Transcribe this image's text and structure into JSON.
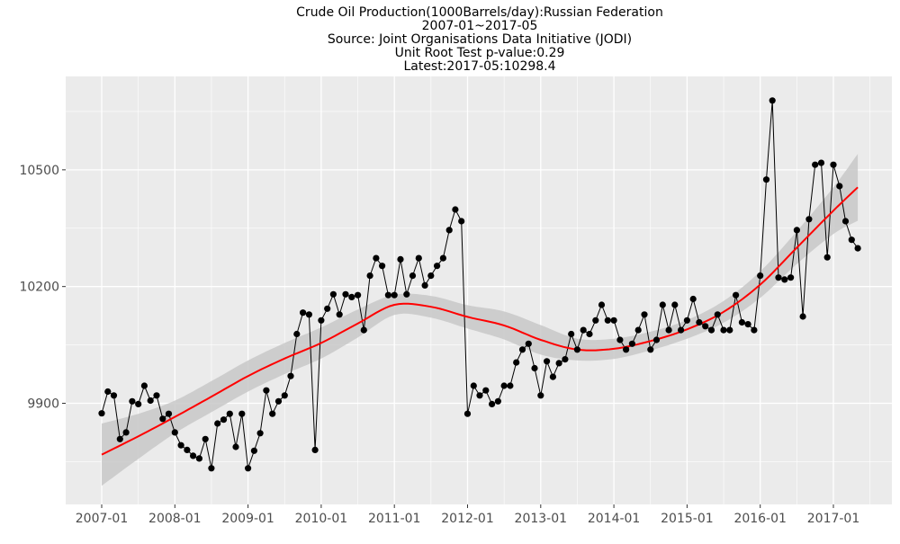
{
  "chart_data": {
    "type": "line",
    "title_lines": [
      "Crude Oil Production(1000Barrels/day):Russian Federation",
      "2007-01~2017-05",
      "Source: Joint Organisations Data Initiative (JODI)",
      "Unit Root Test p-value:0.29",
      "Latest:2017-05:10298.4"
    ],
    "xlabel": "",
    "ylabel": "",
    "x_ticks": [
      "2007-01",
      "2008-01",
      "2009-01",
      "2010-01",
      "2011-01",
      "2012-01",
      "2013-01",
      "2014-01",
      "2015-01",
      "2016-01",
      "2017-01"
    ],
    "y_ticks": [
      9900,
      10200,
      10500
    ],
    "ylim": [
      9640,
      10740
    ],
    "grid": true,
    "colors": {
      "panel": "#ebebeb",
      "grid": "#ffffff",
      "line": "#000000",
      "point": "#000000",
      "smooth": "#ff0000",
      "band": "#c8c8c8"
    },
    "series": [
      {
        "x": [
          "2007-01",
          "2007-02",
          "2007-03",
          "2007-04",
          "2007-05",
          "2007-06",
          "2007-07",
          "2007-08",
          "2007-09",
          "2007-10",
          "2007-11",
          "2007-12",
          "2008-01",
          "2008-02",
          "2008-03",
          "2008-04",
          "2008-05",
          "2008-06",
          "2008-07",
          "2008-08",
          "2008-09",
          "2008-10",
          "2008-11",
          "2008-12",
          "2009-01",
          "2009-02",
          "2009-03",
          "2009-04",
          "2009-05",
          "2009-06",
          "2009-07",
          "2009-08",
          "2009-09",
          "2009-10",
          "2009-11",
          "2009-12",
          "2010-01",
          "2010-02",
          "2010-03",
          "2010-04",
          "2010-05",
          "2010-06",
          "2010-07",
          "2010-08",
          "2010-09",
          "2010-10",
          "2010-11",
          "2010-12",
          "2011-01",
          "2011-02",
          "2011-03",
          "2011-04",
          "2011-05",
          "2011-06",
          "2011-07",
          "2011-08",
          "2011-09",
          "2011-10",
          "2011-11",
          "2011-12",
          "2012-01",
          "2012-02",
          "2012-03",
          "2012-04",
          "2012-05",
          "2012-06",
          "2012-07",
          "2012-08",
          "2012-09",
          "2012-10",
          "2012-11",
          "2012-12",
          "2013-01",
          "2013-02",
          "2013-03",
          "2013-04",
          "2013-05",
          "2013-06",
          "2013-07",
          "2013-08",
          "2013-09",
          "2013-10",
          "2013-11",
          "2013-12",
          "2014-01",
          "2014-02",
          "2014-03",
          "2014-04",
          "2014-05",
          "2014-06",
          "2014-07",
          "2014-08",
          "2014-09",
          "2014-10",
          "2014-11",
          "2014-12",
          "2015-01",
          "2015-02",
          "2015-03",
          "2015-04",
          "2015-05",
          "2015-06",
          "2015-07",
          "2015-08",
          "2015-09",
          "2015-10",
          "2015-11",
          "2015-12",
          "2016-01",
          "2016-02",
          "2016-03",
          "2016-04",
          "2016-05",
          "2016-06",
          "2016-07",
          "2016-08",
          "2016-09",
          "2016-10",
          "2016-11",
          "2016-12",
          "2017-01",
          "2017-02",
          "2017-03",
          "2017-04",
          "2017-05"
        ],
        "y": [
          9874,
          9930,
          9920,
          9808,
          9825,
          9905,
          9898,
          9945,
          9907,
          9920,
          9860,
          9873,
          9825,
          9792,
          9780,
          9765,
          9758,
          9808,
          9733,
          9848,
          9858,
          9873,
          9788,
          9873,
          9733,
          9778,
          9823,
          9933,
          9873,
          9905,
          9920,
          9970,
          10078,
          10133,
          10128,
          9780,
          10113,
          10143,
          10180,
          10128,
          10180,
          10173,
          10178,
          10088,
          10228,
          10273,
          10253,
          10178,
          10178,
          10270,
          10180,
          10228,
          10273,
          10203,
          10228,
          10253,
          10273,
          10345,
          10398,
          10368,
          9873,
          9945,
          9920,
          9933,
          9898,
          9905,
          9945,
          9945,
          10005,
          10038,
          10053,
          9990,
          9920,
          10008,
          9968,
          10003,
          10013,
          10078,
          10038,
          10088,
          10078,
          10113,
          10153,
          10113,
          10113,
          10063,
          10038,
          10053,
          10088,
          10128,
          10038,
          10063,
          10153,
          10088,
          10153,
          10088,
          10113,
          10168,
          10108,
          10098,
          10088,
          10128,
          10088,
          10088,
          10178,
          10108,
          10103,
          10088,
          10228,
          10475,
          10678,
          10223,
          10218,
          10223,
          10345,
          10123,
          10373,
          10513,
          10518,
          10275,
          10513,
          10458,
          10368,
          10320,
          10298.4
        ]
      }
    ],
    "smooth": {
      "x": [
        "2007-01",
        "2007-07",
        "2008-01",
        "2008-07",
        "2009-01",
        "2009-07",
        "2010-01",
        "2010-07",
        "2011-01",
        "2011-07",
        "2012-01",
        "2012-07",
        "2013-01",
        "2013-07",
        "2014-01",
        "2014-07",
        "2015-01",
        "2015-07",
        "2016-01",
        "2016-07",
        "2017-01",
        "2017-05"
      ],
      "y": [
        9768,
        9815,
        9865,
        9917,
        9970,
        10015,
        10055,
        10105,
        10153,
        10148,
        10122,
        10100,
        10063,
        10038,
        10040,
        10060,
        10090,
        10135,
        10205,
        10300,
        10395,
        10455
      ],
      "band_half_width": [
        80,
        58,
        42,
        40,
        40,
        40,
        40,
        36,
        26,
        28,
        30,
        36,
        38,
        28,
        26,
        24,
        24,
        28,
        34,
        42,
        60,
        86
      ]
    }
  }
}
